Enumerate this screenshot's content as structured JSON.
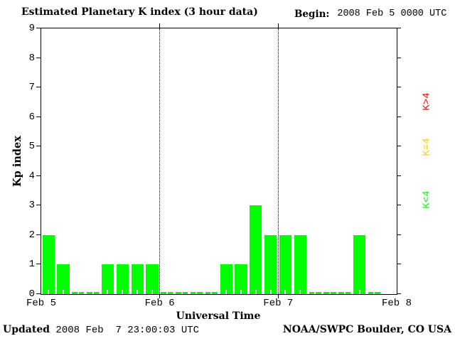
{
  "header": {
    "title": "Estimated Planetary K index (3 hour data)",
    "begin_label": "Begin:",
    "begin_value": "2008 Feb 5 0000 UTC"
  },
  "chart_data": {
    "type": "bar",
    "title": "Estimated Planetary K index (3 hour data)",
    "xlabel": "Universal Time",
    "ylabel": "Kp index",
    "ylim": [
      0,
      9
    ],
    "y_ticks": [
      0,
      1,
      2,
      3,
      4,
      5,
      6,
      7,
      8,
      9
    ],
    "x_tick_labels": [
      "Feb 5",
      "Feb 6",
      "Feb 7",
      "Feb 8"
    ],
    "bars_per_day": 8,
    "bar_interval_hours": 3,
    "values": [
      2,
      1,
      0,
      0,
      1,
      1,
      1,
      1,
      0,
      0,
      0,
      0,
      1,
      1,
      3,
      2,
      2,
      2,
      0,
      0,
      0,
      2,
      0
    ],
    "color_rule": "K<4 green, K=4 yellow, K>4 red",
    "colors": {
      "low": "#00ff00",
      "mid": "#ffcc00",
      "high": "#ff0000"
    },
    "grid": "dotted vertical line at each day boundary",
    "legend_position": "right, rotated"
  },
  "legend": {
    "items": [
      {
        "label": "K>4",
        "color": "#ff0000"
      },
      {
        "label": "K=4",
        "color": "#ffcc00"
      },
      {
        "label": "K<4",
        "color": "#00ff00"
      }
    ]
  },
  "footer": {
    "updated_label": "Updated",
    "updated_value": " 2008 Feb  7 23:00:03 UTC",
    "credit": "NOAA/SWPC Boulder, CO USA"
  }
}
